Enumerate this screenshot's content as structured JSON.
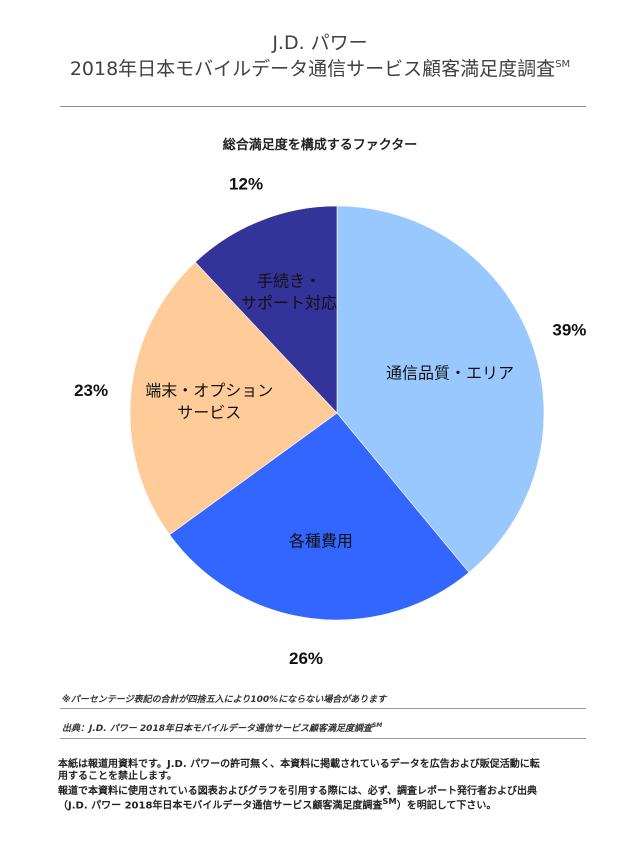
{
  "header": {
    "brand": "J.D. パワー",
    "title": "2018年日本モバイルデータ通信サービス顧客満足度調査",
    "title_mark": "SM"
  },
  "chart_data": {
    "type": "pie",
    "title": "総合満足度を構成するファクター",
    "slices": [
      {
        "label": "通信品質・エリア",
        "value": 39,
        "value_label": "39%",
        "color": "#99c8ff",
        "label_color": "#111111"
      },
      {
        "label": "各種費用",
        "value": 26,
        "value_label": "26%",
        "color": "#3366ff",
        "label_color": "#111111"
      },
      {
        "label": "端末・オプション\nサービス",
        "value": 23,
        "value_label": "23%",
        "color": "#ffcc99",
        "label_color": "#111111"
      },
      {
        "label": "手続き・\nサポート対応",
        "value": 12,
        "value_label": "12%",
        "color": "#333399",
        "label_color": "#ffffff"
      }
    ],
    "start_angle_deg": 0,
    "direction": "clockwise",
    "legend": "none"
  },
  "footer": {
    "note": "※パーセンテージ表記の合計が四捨五入により100%にならない場合があります",
    "source": "出典：J.D. パワー 2018年日本モバイルデータ通信サービス顧客満足度調査",
    "source_mark": "SM",
    "notice_line1": "本紙は報道用資料です。J.D. パワーの許可無く、本資料に掲載されているデータを広告および販促活動に転",
    "notice_line2": "用することを禁止します。",
    "notice_line3": "報道で本資料に使用されている図表およびグラフを引用する際には、必ず、調査レポート発行者および出典",
    "notice_line4_a": "（J.D. パワー 2018年日本モバイルデータ通信サービス顧客満足度調査",
    "notice_line4_mark": "SM",
    "notice_line4_b": "）を明記して下さい。"
  }
}
